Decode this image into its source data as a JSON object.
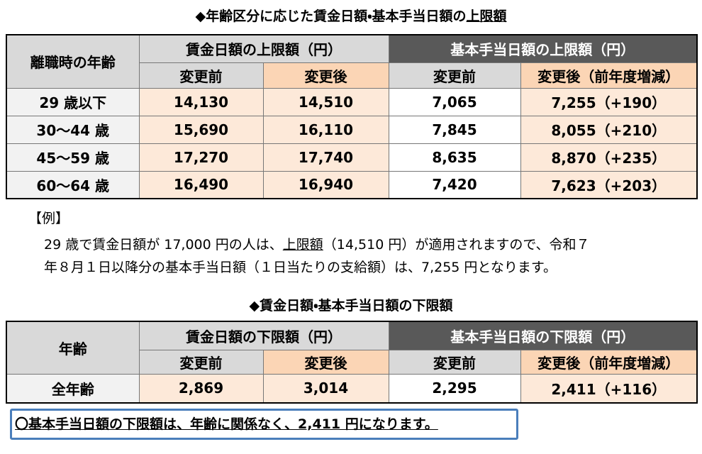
{
  "upper": {
    "title_prefix": "◆年齢区分に応じた賃金日額・基本手当日額の",
    "title_emph": "上限額",
    "table": {
      "age_header": "離職時の年齢",
      "group_headers": [
        "賃金日額の上限額（円）",
        "基本手当日額の上限額（円）"
      ],
      "sub_headers": [
        "変更前",
        "変更後",
        "変更前",
        "変更後（前年度増減）"
      ],
      "rows": [
        [
          "29 歳以下",
          "14,130",
          "14,510",
          "7,065",
          "7,255（+190）"
        ],
        [
          "30～44 歳",
          "15,690",
          "16,110",
          "7,845",
          "8,055（+210）"
        ],
        [
          "45～59 歳",
          "17,270",
          "17,740",
          "8,635",
          "8,870（+235）"
        ],
        [
          "60～64 歳",
          "16,490",
          "16,940",
          "7,420",
          "7,623（+203）"
        ]
      ]
    }
  },
  "example": {
    "label": "【例】",
    "line1": [
      "29 歳で賃金日額が 17,000 円の人は、",
      "上限額",
      "（14,510 円）が適用されますので、令和７"
    ],
    "line2": "年８月１日以降分の基本手当日額（１日当たりの支給額）は、7,255 円となります。"
  },
  "lower": {
    "title": "◆賃金日額・基本手当日額の下限額",
    "table": {
      "age_header": "年齢",
      "group_headers": [
        "賃金日額の下限額（円）",
        "基本手当日額の下限額（円）"
      ],
      "sub_headers": [
        "変更前",
        "変更後",
        "変更前",
        "変更後（前年度増減）"
      ],
      "rows": [
        [
          "全年齢",
          "2,869",
          "3,014",
          "2,295",
          "2,411（+116）"
        ]
      ]
    }
  },
  "note": "〇基本手当日額の下限額は、年齢に関係なく、2,411 円になります。"
}
